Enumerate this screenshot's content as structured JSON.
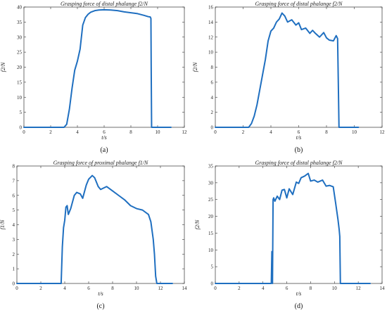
{
  "colors": {
    "line": "#1f6fc0"
  },
  "chart_data": [
    {
      "id": "a",
      "type": "line",
      "title": "Grasping force of distal phalange f2/N",
      "xlabel": "t/s",
      "ylabel": "f2/N",
      "caption": "(a)",
      "xlim": [
        0,
        12
      ],
      "ylim": [
        0,
        40
      ],
      "xticks": [
        0,
        2,
        4,
        6,
        8,
        10,
        12
      ],
      "yticks": [
        0,
        5,
        10,
        15,
        20,
        25,
        30,
        35,
        40
      ],
      "grid": false,
      "x": [
        0,
        3.0,
        3.2,
        3.4,
        3.6,
        3.8,
        4.0,
        4.2,
        4.4,
        4.6,
        4.8,
        5.0,
        5.3,
        5.6,
        6.0,
        6.5,
        7.0,
        7.5,
        8.0,
        8.5,
        9.0,
        9.3,
        9.45,
        9.5,
        9.52,
        9.55,
        9.6,
        10.0,
        11.0
      ],
      "values": [
        0,
        0,
        1,
        6,
        13,
        19,
        22,
        26,
        34,
        36.5,
        37.6,
        38.3,
        38.8,
        39.0,
        39.1,
        39.0,
        38.8,
        38.4,
        38.1,
        37.8,
        37.2,
        36.8,
        36.7,
        36.2,
        20,
        0,
        0,
        0,
        0
      ]
    },
    {
      "id": "b",
      "type": "line",
      "title": "Grasping force of distal phalange f2/N",
      "xlabel": "t/s",
      "ylabel": "f2/N",
      "caption": "(b)",
      "xlim": [
        0,
        12
      ],
      "ylim": [
        0,
        16
      ],
      "xticks": [
        0,
        2,
        4,
        6,
        8,
        10,
        12
      ],
      "yticks": [
        0,
        2,
        4,
        6,
        8,
        10,
        12,
        14,
        16
      ],
      "grid": false,
      "x": [
        0,
        2.4,
        2.6,
        2.8,
        3.0,
        3.2,
        3.4,
        3.6,
        3.8,
        4.0,
        4.2,
        4.4,
        4.6,
        4.8,
        5.0,
        5.2,
        5.5,
        5.8,
        6.0,
        6.2,
        6.5,
        6.8,
        7.0,
        7.2,
        7.5,
        7.8,
        8.0,
        8.2,
        8.5,
        8.7,
        8.8,
        8.85,
        8.9,
        10.3
      ],
      "values": [
        0,
        0,
        0.5,
        1.5,
        3.0,
        5.0,
        7.0,
        9.0,
        11.5,
        12.8,
        13.2,
        14.0,
        14.4,
        15.2,
        14.8,
        14.0,
        14.3,
        13.6,
        13.9,
        13.0,
        13.2,
        12.5,
        12.9,
        12.5,
        12.0,
        12.6,
        11.9,
        11.6,
        11.5,
        12.2,
        11.8,
        6,
        0,
        0
      ]
    },
    {
      "id": "c",
      "type": "line",
      "title": "Grasping force of proximal phalange f1/N",
      "xlabel": "t/s",
      "ylabel": "f1/N",
      "caption": "(c)",
      "xlim": [
        0,
        14
      ],
      "ylim": [
        0,
        8
      ],
      "xticks": [
        0,
        2,
        4,
        6,
        8,
        10,
        12,
        14
      ],
      "yticks": [
        0,
        1,
        2,
        3,
        4,
        5,
        6,
        7,
        8
      ],
      "grid": false,
      "x": [
        0,
        3.7,
        3.8,
        3.9,
        4.0,
        4.1,
        4.2,
        4.3,
        4.5,
        4.8,
        5.0,
        5.3,
        5.5,
        5.8,
        6.0,
        6.3,
        6.5,
        6.8,
        7.0,
        7.5,
        8.0,
        8.5,
        9.0,
        9.5,
        10.0,
        10.5,
        11.0,
        11.2,
        11.4,
        11.5,
        11.6,
        11.7,
        13.0
      ],
      "values": [
        0,
        0,
        2.5,
        3.8,
        4.3,
        5.2,
        5.3,
        4.7,
        5.1,
        6.0,
        6.2,
        6.1,
        5.8,
        6.7,
        7.1,
        7.35,
        7.2,
        6.6,
        6.4,
        6.6,
        6.3,
        6.0,
        5.7,
        5.3,
        5.1,
        5.0,
        4.7,
        4.2,
        3.0,
        2.0,
        0.5,
        0,
        0
      ]
    },
    {
      "id": "d",
      "type": "line",
      "title": "Grasping force of distal phalange f2/N",
      "xlabel": "t/s",
      "ylabel": "f2/N",
      "caption": "(d)",
      "xlim": [
        0,
        14
      ],
      "ylim": [
        0,
        35
      ],
      "xticks": [
        0,
        2,
        4,
        6,
        8,
        10,
        12,
        14
      ],
      "yticks": [
        0,
        5,
        10,
        15,
        20,
        25,
        30,
        35
      ],
      "grid": false,
      "x": [
        0,
        4.7,
        4.75,
        4.8,
        4.85,
        4.9,
        5.0,
        5.2,
        5.4,
        5.6,
        5.8,
        6.0,
        6.2,
        6.5,
        6.8,
        7.0,
        7.2,
        7.5,
        7.8,
        8.0,
        8.3,
        8.6,
        9.0,
        9.3,
        9.6,
        9.9,
        10.1,
        10.3,
        10.4,
        10.45,
        10.5,
        13.0
      ],
      "values": [
        0,
        0,
        9.5,
        0,
        25,
        25.5,
        24.5,
        26,
        25,
        27.8,
        28,
        25.5,
        28.2,
        26.5,
        30.2,
        29.8,
        31.5,
        32.0,
        32.8,
        30.5,
        30.8,
        30.2,
        30.8,
        29.0,
        29.2,
        28.8,
        24,
        19,
        16,
        14,
        0,
        0
      ]
    }
  ]
}
